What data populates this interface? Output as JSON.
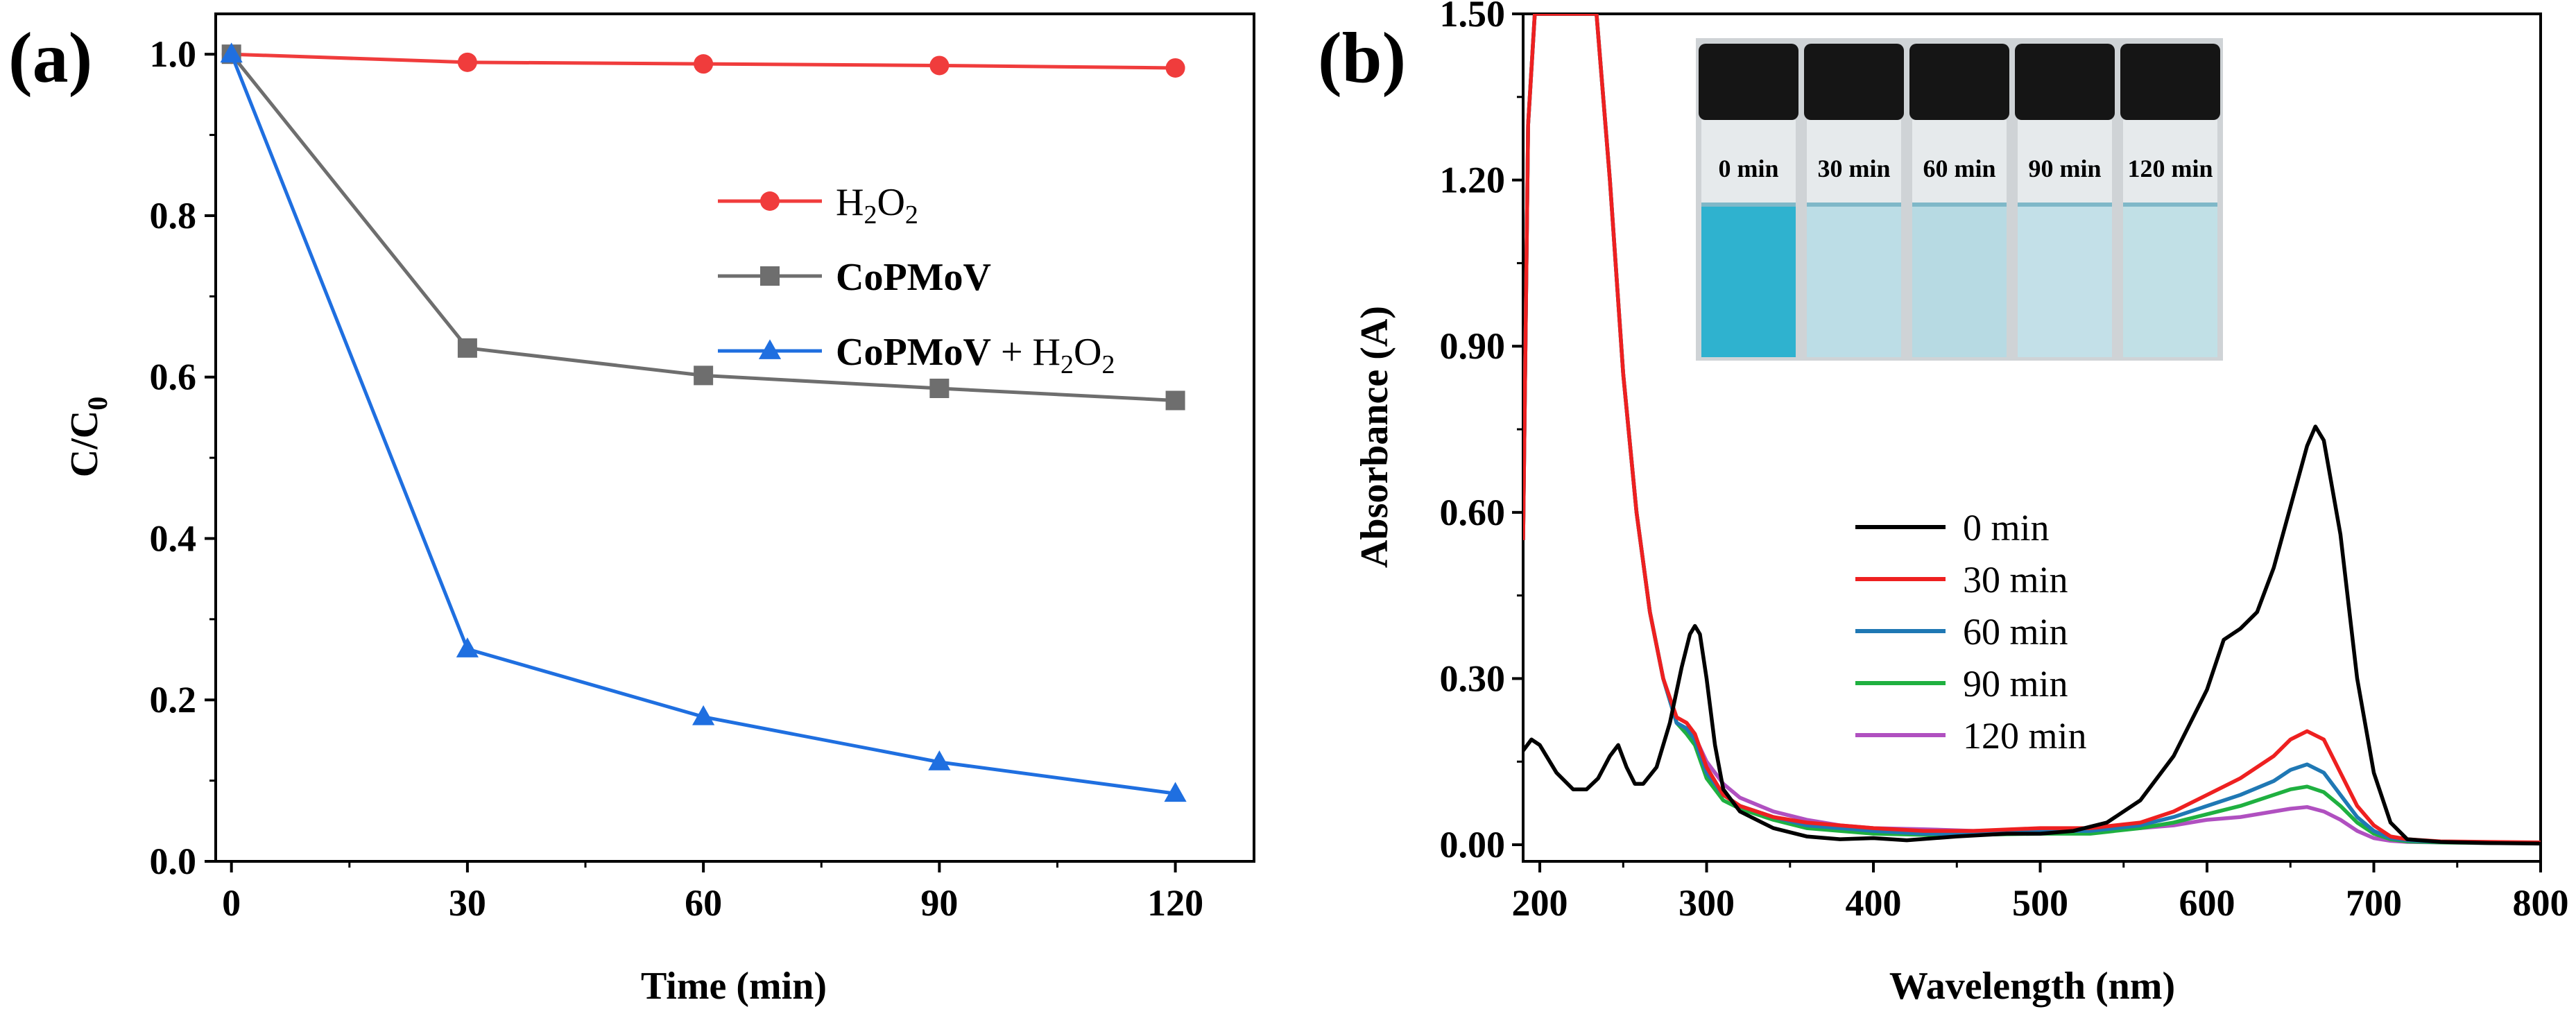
{
  "figure": {
    "panel_a_letter": "(a)",
    "panel_b_letter": "(b)"
  },
  "chart_data": [
    {
      "type": "line",
      "panel": "a",
      "xlabel": "Time (min)",
      "ylabel_main": "C/C",
      "ylabel_sub": "0",
      "xlim": [
        -2,
        130
      ],
      "ylim": [
        0.0,
        1.05
      ],
      "xticks": [
        0,
        30,
        60,
        90,
        120
      ],
      "xtick_labels": [
        "0",
        "30",
        "60",
        "90",
        "120"
      ],
      "yticks": [
        0.0,
        0.2,
        0.4,
        0.6,
        0.8,
        1.0
      ],
      "ytick_labels": [
        "0.0",
        "0.2",
        "0.4",
        "0.6",
        "0.8",
        "1.0"
      ],
      "legend_position": "upper-right",
      "x": [
        0,
        30,
        60,
        90,
        120
      ],
      "series": [
        {
          "name": "H2O2",
          "legend_parts": [
            "H",
            "2",
            "O",
            "2"
          ],
          "color": "#f03c3c",
          "marker": "circle",
          "bold": false,
          "values": [
            1.0,
            0.99,
            0.988,
            0.986,
            0.983
          ]
        },
        {
          "name": "CoPMoV",
          "legend_parts": [
            "CoPMoV"
          ],
          "color": "#6e6e6e",
          "marker": "square",
          "bold": true,
          "values": [
            1.0,
            0.636,
            0.602,
            0.586,
            0.571
          ]
        },
        {
          "name": "CoPMoV + H2O2",
          "legend_parts": [
            "CoPMoV",
            " + H",
            "2",
            "O",
            "2"
          ],
          "color": "#1f6fe0",
          "marker": "triangle",
          "bold": true,
          "values": [
            1.0,
            0.263,
            0.179,
            0.123,
            0.084
          ]
        }
      ]
    },
    {
      "type": "line",
      "panel": "b",
      "xlabel": "Wavelength (nm)",
      "ylabel": "Absorbance (A)",
      "xlim": [
        190,
        800
      ],
      "ylim": [
        -0.03,
        1.5
      ],
      "xticks": [
        200,
        300,
        400,
        500,
        600,
        700,
        800
      ],
      "xtick_labels": [
        "200",
        "300",
        "400",
        "500",
        "600",
        "700",
        "800"
      ],
      "yticks": [
        0.0,
        0.3,
        0.6,
        0.9,
        1.2,
        1.5
      ],
      "ytick_labels": [
        "0.00",
        "0.30",
        "0.60",
        "0.90",
        "1.20",
        "1.50"
      ],
      "legend_position": "middle-right",
      "series": [
        {
          "name": "0 min",
          "color": "#000000",
          "x": [
            190,
            195,
            200,
            210,
            220,
            228,
            235,
            242,
            247,
            252,
            257,
            262,
            270,
            278,
            285,
            290,
            293,
            296,
            300,
            305,
            310,
            320,
            340,
            360,
            380,
            400,
            420,
            450,
            480,
            500,
            520,
            540,
            560,
            580,
            600,
            610,
            620,
            630,
            640,
            650,
            660,
            665,
            670,
            680,
            690,
            700,
            710,
            720,
            740,
            770,
            800
          ],
          "values": [
            0.17,
            0.19,
            0.18,
            0.13,
            0.1,
            0.1,
            0.12,
            0.16,
            0.18,
            0.14,
            0.11,
            0.11,
            0.14,
            0.22,
            0.32,
            0.38,
            0.395,
            0.38,
            0.3,
            0.18,
            0.1,
            0.06,
            0.03,
            0.015,
            0.01,
            0.012,
            0.008,
            0.015,
            0.02,
            0.02,
            0.025,
            0.04,
            0.08,
            0.16,
            0.28,
            0.37,
            0.39,
            0.42,
            0.5,
            0.61,
            0.72,
            0.755,
            0.73,
            0.56,
            0.3,
            0.13,
            0.04,
            0.01,
            0.005,
            0.003,
            0.002
          ]
        },
        {
          "name": "30 min",
          "color": "#ee2020",
          "x": [
            190,
            193,
            197,
            202,
            210,
            218,
            226,
            234,
            242,
            250,
            258,
            266,
            274,
            282,
            288,
            293,
            300,
            310,
            320,
            340,
            360,
            380,
            400,
            430,
            460,
            500,
            530,
            560,
            580,
            600,
            620,
            640,
            650,
            660,
            670,
            680,
            690,
            700,
            710,
            720,
            740,
            770,
            800
          ],
          "values": [
            0.55,
            1.3,
            1.5,
            1.5,
            1.5,
            1.5,
            1.5,
            1.5,
            1.2,
            0.85,
            0.6,
            0.42,
            0.3,
            0.23,
            0.22,
            0.2,
            0.14,
            0.09,
            0.07,
            0.05,
            0.04,
            0.035,
            0.03,
            0.025,
            0.025,
            0.03,
            0.03,
            0.04,
            0.06,
            0.09,
            0.12,
            0.16,
            0.19,
            0.205,
            0.19,
            0.13,
            0.07,
            0.035,
            0.015,
            0.01,
            0.006,
            0.005,
            0.004
          ]
        },
        {
          "name": "60 min",
          "color": "#1f78b4",
          "x": [
            190,
            193,
            197,
            202,
            210,
            218,
            226,
            234,
            242,
            250,
            258,
            266,
            274,
            282,
            288,
            293,
            300,
            310,
            320,
            340,
            360,
            380,
            400,
            430,
            460,
            500,
            530,
            560,
            580,
            600,
            620,
            640,
            650,
            660,
            670,
            680,
            690,
            700,
            710,
            720,
            740,
            770,
            800
          ],
          "values": [
            0.55,
            1.3,
            1.5,
            1.5,
            1.5,
            1.5,
            1.5,
            1.5,
            1.2,
            0.85,
            0.6,
            0.42,
            0.3,
            0.22,
            0.21,
            0.19,
            0.13,
            0.09,
            0.07,
            0.05,
            0.035,
            0.03,
            0.025,
            0.02,
            0.02,
            0.025,
            0.025,
            0.035,
            0.05,
            0.07,
            0.09,
            0.115,
            0.135,
            0.145,
            0.13,
            0.09,
            0.05,
            0.025,
            0.012,
            0.008,
            0.005,
            0.004,
            0.003
          ]
        },
        {
          "name": "90 min",
          "color": "#1fb040",
          "x": [
            190,
            193,
            197,
            202,
            210,
            218,
            226,
            234,
            242,
            250,
            258,
            266,
            274,
            282,
            288,
            293,
            300,
            310,
            320,
            340,
            360,
            380,
            400,
            430,
            460,
            500,
            530,
            560,
            580,
            600,
            620,
            640,
            650,
            660,
            670,
            680,
            690,
            700,
            710,
            720,
            740,
            770,
            800
          ],
          "values": [
            0.55,
            1.3,
            1.5,
            1.5,
            1.5,
            1.5,
            1.5,
            1.5,
            1.2,
            0.85,
            0.6,
            0.42,
            0.3,
            0.22,
            0.2,
            0.18,
            0.12,
            0.08,
            0.065,
            0.045,
            0.03,
            0.025,
            0.02,
            0.018,
            0.018,
            0.02,
            0.02,
            0.03,
            0.04,
            0.055,
            0.07,
            0.09,
            0.1,
            0.105,
            0.095,
            0.07,
            0.04,
            0.02,
            0.01,
            0.006,
            0.004,
            0.003,
            0.003
          ]
        },
        {
          "name": "120 min",
          "color": "#b050c0",
          "x": [
            190,
            193,
            197,
            202,
            210,
            218,
            226,
            234,
            242,
            250,
            258,
            266,
            274,
            282,
            288,
            293,
            300,
            310,
            320,
            340,
            360,
            380,
            400,
            430,
            460,
            500,
            530,
            560,
            580,
            600,
            620,
            640,
            650,
            660,
            670,
            680,
            690,
            700,
            710,
            720,
            740,
            770,
            800
          ],
          "values": [
            0.55,
            1.3,
            1.5,
            1.5,
            1.5,
            1.5,
            1.5,
            1.5,
            1.2,
            0.85,
            0.6,
            0.42,
            0.3,
            0.22,
            0.205,
            0.195,
            0.15,
            0.11,
            0.085,
            0.06,
            0.045,
            0.035,
            0.03,
            0.028,
            0.025,
            0.028,
            0.025,
            0.03,
            0.035,
            0.045,
            0.05,
            0.06,
            0.065,
            0.068,
            0.06,
            0.045,
            0.025,
            0.012,
            0.007,
            0.005,
            0.004,
            0.003,
            0.003
          ]
        }
      ]
    }
  ],
  "inset": {
    "vial_labels": [
      "0 min",
      "30 min",
      "60 min",
      "90 min",
      "120 min"
    ],
    "liquid_colors": [
      "#2fb2cf",
      "#bcdde6",
      "#b7dae3",
      "#c3e0e8",
      "#c1e0e6"
    ],
    "cap_color": "#151515",
    "background_color": "#cfd3d6"
  }
}
